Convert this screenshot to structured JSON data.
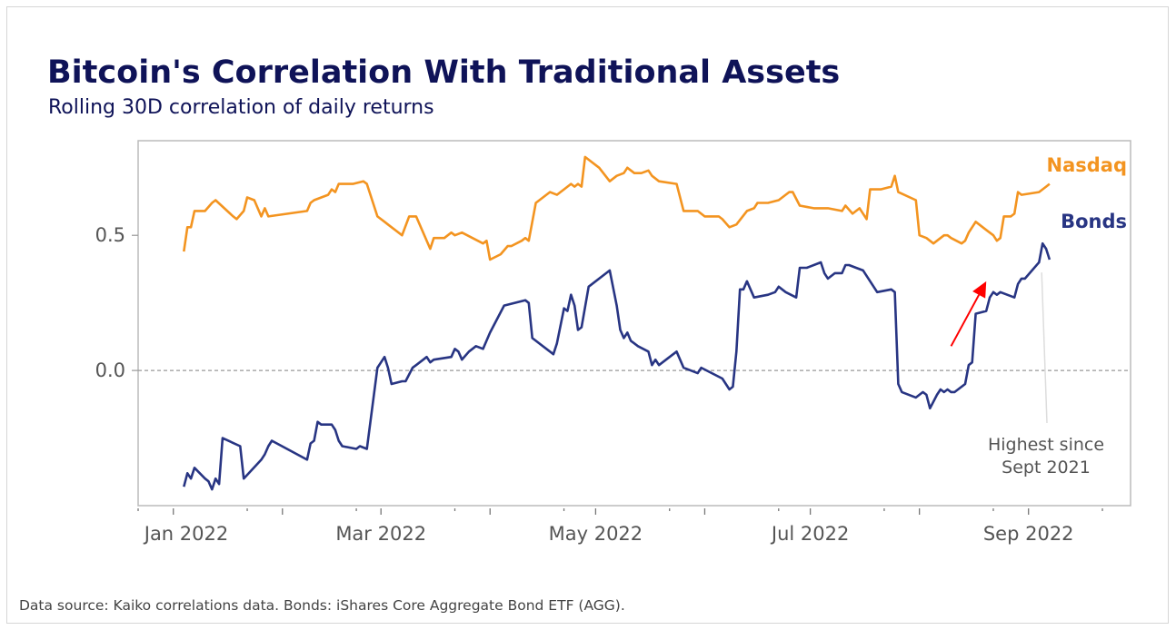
{
  "chart_data": {
    "type": "line",
    "title": "Bitcoin's Correlation With Traditional Assets",
    "subtitle": "Rolling 30D correlation of daily returns",
    "xlabel": "",
    "ylabel": "",
    "xlim": [
      "2021-12-22",
      "2022-09-30"
    ],
    "ylim": [
      -0.5,
      0.85
    ],
    "x_ticks": [
      {
        "date": "2022-01-01",
        "label": "Jan 2022"
      },
      {
        "date": "2022-03-01",
        "label": "Mar 2022"
      },
      {
        "date": "2022-05-01",
        "label": "May 2022"
      },
      {
        "date": "2022-07-01",
        "label": "Jul 2022"
      },
      {
        "date": "2022-09-01",
        "label": "Sep 2022"
      }
    ],
    "y_ticks": [
      {
        "value": 0.5,
        "label": "0.5"
      },
      {
        "value": 0.0,
        "label": "0.0"
      }
    ],
    "grid": false,
    "reference_line": {
      "value": 0.0,
      "style": "dashed"
    },
    "series": [
      {
        "name": "Nasdaq",
        "color": "#f39420",
        "points": [
          [
            "2022-01-04",
            0.44
          ],
          [
            "2022-01-05",
            0.53
          ],
          [
            "2022-01-06",
            0.53
          ],
          [
            "2022-01-07",
            0.59
          ],
          [
            "2022-01-10",
            0.59
          ],
          [
            "2022-01-12",
            0.62
          ],
          [
            "2022-01-13",
            0.63
          ],
          [
            "2022-01-18",
            0.57
          ],
          [
            "2022-01-19",
            0.56
          ],
          [
            "2022-01-21",
            0.59
          ],
          [
            "2022-01-22",
            0.64
          ],
          [
            "2022-01-24",
            0.63
          ],
          [
            "2022-01-26",
            0.57
          ],
          [
            "2022-01-27",
            0.6
          ],
          [
            "2022-01-28",
            0.57
          ],
          [
            "2022-02-08",
            0.59
          ],
          [
            "2022-02-09",
            0.62
          ],
          [
            "2022-02-10",
            0.63
          ],
          [
            "2022-02-14",
            0.65
          ],
          [
            "2022-02-15",
            0.67
          ],
          [
            "2022-02-16",
            0.66
          ],
          [
            "2022-02-17",
            0.69
          ],
          [
            "2022-02-21",
            0.69
          ],
          [
            "2022-02-24",
            0.7
          ],
          [
            "2022-02-25",
            0.69
          ],
          [
            "2022-02-28",
            0.57
          ],
          [
            "2022-03-02",
            0.55
          ],
          [
            "2022-03-03",
            0.54
          ],
          [
            "2022-03-07",
            0.5
          ],
          [
            "2022-03-09",
            0.57
          ],
          [
            "2022-03-11",
            0.57
          ],
          [
            "2022-03-15",
            0.45
          ],
          [
            "2022-03-16",
            0.49
          ],
          [
            "2022-03-19",
            0.49
          ],
          [
            "2022-03-21",
            0.51
          ],
          [
            "2022-03-22",
            0.5
          ],
          [
            "2022-03-24",
            0.51
          ],
          [
            "2022-03-30",
            0.47
          ],
          [
            "2022-03-31",
            0.48
          ],
          [
            "2022-04-01",
            0.41
          ],
          [
            "2022-04-04",
            0.43
          ],
          [
            "2022-04-06",
            0.46
          ],
          [
            "2022-04-07",
            0.46
          ],
          [
            "2022-04-10",
            0.48
          ],
          [
            "2022-04-11",
            0.49
          ],
          [
            "2022-04-12",
            0.48
          ],
          [
            "2022-04-14",
            0.62
          ],
          [
            "2022-04-18",
            0.66
          ],
          [
            "2022-04-20",
            0.65
          ],
          [
            "2022-04-22",
            0.67
          ],
          [
            "2022-04-24",
            0.69
          ],
          [
            "2022-04-25",
            0.68
          ],
          [
            "2022-04-26",
            0.69
          ],
          [
            "2022-04-27",
            0.68
          ],
          [
            "2022-04-28",
            0.79
          ],
          [
            "2022-05-02",
            0.75
          ],
          [
            "2022-05-05",
            0.7
          ],
          [
            "2022-05-07",
            0.72
          ],
          [
            "2022-05-09",
            0.73
          ],
          [
            "2022-05-10",
            0.75
          ],
          [
            "2022-05-12",
            0.73
          ],
          [
            "2022-05-14",
            0.73
          ],
          [
            "2022-05-16",
            0.74
          ],
          [
            "2022-05-17",
            0.72
          ],
          [
            "2022-05-19",
            0.7
          ],
          [
            "2022-05-24",
            0.69
          ],
          [
            "2022-05-26",
            0.59
          ],
          [
            "2022-05-30",
            0.59
          ],
          [
            "2022-06-01",
            0.57
          ],
          [
            "2022-06-05",
            0.57
          ],
          [
            "2022-06-06",
            0.56
          ],
          [
            "2022-06-08",
            0.53
          ],
          [
            "2022-06-10",
            0.54
          ],
          [
            "2022-06-13",
            0.59
          ],
          [
            "2022-06-15",
            0.6
          ],
          [
            "2022-06-16",
            0.62
          ],
          [
            "2022-06-19",
            0.62
          ],
          [
            "2022-06-22",
            0.63
          ],
          [
            "2022-06-25",
            0.66
          ],
          [
            "2022-06-26",
            0.66
          ],
          [
            "2022-06-28",
            0.61
          ],
          [
            "2022-07-02",
            0.6
          ],
          [
            "2022-07-06",
            0.6
          ],
          [
            "2022-07-10",
            0.59
          ],
          [
            "2022-07-11",
            0.61
          ],
          [
            "2022-07-13",
            0.58
          ],
          [
            "2022-07-15",
            0.6
          ],
          [
            "2022-07-17",
            0.56
          ],
          [
            "2022-07-18",
            0.67
          ],
          [
            "2022-07-21",
            0.67
          ],
          [
            "2022-07-24",
            0.68
          ],
          [
            "2022-07-25",
            0.72
          ],
          [
            "2022-07-26",
            0.66
          ],
          [
            "2022-07-31",
            0.63
          ],
          [
            "2022-08-01",
            0.5
          ],
          [
            "2022-08-03",
            0.49
          ],
          [
            "2022-08-05",
            0.47
          ],
          [
            "2022-08-06",
            0.48
          ],
          [
            "2022-08-08",
            0.5
          ],
          [
            "2022-08-09",
            0.5
          ],
          [
            "2022-08-10",
            0.49
          ],
          [
            "2022-08-13",
            0.47
          ],
          [
            "2022-08-14",
            0.48
          ],
          [
            "2022-08-15",
            0.51
          ],
          [
            "2022-08-17",
            0.55
          ],
          [
            "2022-08-20",
            0.52
          ],
          [
            "2022-08-22",
            0.5
          ],
          [
            "2022-08-23",
            0.48
          ],
          [
            "2022-08-24",
            0.49
          ],
          [
            "2022-08-25",
            0.57
          ],
          [
            "2022-08-27",
            0.57
          ],
          [
            "2022-08-28",
            0.58
          ],
          [
            "2022-08-29",
            0.66
          ],
          [
            "2022-08-30",
            0.65
          ],
          [
            "2022-09-04",
            0.66
          ],
          [
            "2022-09-06",
            0.68
          ],
          [
            "2022-09-07",
            0.69
          ]
        ]
      },
      {
        "name": "Bonds",
        "color": "#283583",
        "points": [
          [
            "2022-01-04",
            -0.43
          ],
          [
            "2022-01-05",
            -0.38
          ],
          [
            "2022-01-06",
            -0.4
          ],
          [
            "2022-01-07",
            -0.36
          ],
          [
            "2022-01-10",
            -0.4
          ],
          [
            "2022-01-11",
            -0.41
          ],
          [
            "2022-01-12",
            -0.44
          ],
          [
            "2022-01-13",
            -0.4
          ],
          [
            "2022-01-14",
            -0.42
          ],
          [
            "2022-01-15",
            -0.25
          ],
          [
            "2022-01-20",
            -0.28
          ],
          [
            "2022-01-21",
            -0.4
          ],
          [
            "2022-01-26",
            -0.33
          ],
          [
            "2022-01-27",
            -0.31
          ],
          [
            "2022-01-28",
            -0.28
          ],
          [
            "2022-01-29",
            -0.26
          ],
          [
            "2022-02-08",
            -0.33
          ],
          [
            "2022-02-09",
            -0.27
          ],
          [
            "2022-02-10",
            -0.26
          ],
          [
            "2022-02-11",
            -0.19
          ],
          [
            "2022-02-12",
            -0.2
          ],
          [
            "2022-02-15",
            -0.2
          ],
          [
            "2022-02-16",
            -0.22
          ],
          [
            "2022-02-17",
            -0.26
          ],
          [
            "2022-02-18",
            -0.28
          ],
          [
            "2022-02-22",
            -0.29
          ],
          [
            "2022-02-23",
            -0.28
          ],
          [
            "2022-02-25",
            -0.29
          ],
          [
            "2022-02-28",
            0.01
          ],
          [
            "2022-03-01",
            0.03
          ],
          [
            "2022-03-02",
            0.05
          ],
          [
            "2022-03-03",
            0.01
          ],
          [
            "2022-03-04",
            -0.05
          ],
          [
            "2022-03-07",
            -0.04
          ],
          [
            "2022-03-08",
            -0.04
          ],
          [
            "2022-03-10",
            0.01
          ],
          [
            "2022-03-11",
            0.02
          ],
          [
            "2022-03-13",
            0.04
          ],
          [
            "2022-03-14",
            0.05
          ],
          [
            "2022-03-15",
            0.03
          ],
          [
            "2022-03-16",
            0.04
          ],
          [
            "2022-03-21",
            0.05
          ],
          [
            "2022-03-22",
            0.08
          ],
          [
            "2022-03-23",
            0.07
          ],
          [
            "2022-03-24",
            0.04
          ],
          [
            "2022-03-26",
            0.07
          ],
          [
            "2022-03-28",
            0.09
          ],
          [
            "2022-03-30",
            0.08
          ],
          [
            "2022-04-01",
            0.14
          ],
          [
            "2022-04-05",
            0.24
          ],
          [
            "2022-04-11",
            0.26
          ],
          [
            "2022-04-12",
            0.25
          ],
          [
            "2022-04-13",
            0.12
          ],
          [
            "2022-04-19",
            0.06
          ],
          [
            "2022-04-20",
            0.1
          ],
          [
            "2022-04-22",
            0.23
          ],
          [
            "2022-04-23",
            0.22
          ],
          [
            "2022-04-24",
            0.28
          ],
          [
            "2022-04-25",
            0.24
          ],
          [
            "2022-04-26",
            0.15
          ],
          [
            "2022-04-27",
            0.16
          ],
          [
            "2022-04-29",
            0.31
          ],
          [
            "2022-05-05",
            0.37
          ],
          [
            "2022-05-07",
            0.24
          ],
          [
            "2022-05-08",
            0.15
          ],
          [
            "2022-05-09",
            0.12
          ],
          [
            "2022-05-10",
            0.14
          ],
          [
            "2022-05-11",
            0.11
          ],
          [
            "2022-05-12",
            0.1
          ],
          [
            "2022-05-13",
            0.09
          ],
          [
            "2022-05-16",
            0.07
          ],
          [
            "2022-05-17",
            0.02
          ],
          [
            "2022-05-18",
            0.04
          ],
          [
            "2022-05-19",
            0.02
          ],
          [
            "2022-05-21",
            0.04
          ],
          [
            "2022-05-24",
            0.07
          ],
          [
            "2022-05-26",
            0.01
          ],
          [
            "2022-05-30",
            -0.01
          ],
          [
            "2022-05-31",
            0.01
          ],
          [
            "2022-06-06",
            -0.03
          ],
          [
            "2022-06-08",
            -0.07
          ],
          [
            "2022-06-09",
            -0.06
          ],
          [
            "2022-06-10",
            0.07
          ],
          [
            "2022-06-11",
            0.3
          ],
          [
            "2022-06-12",
            0.3
          ],
          [
            "2022-06-13",
            0.33
          ],
          [
            "2022-06-15",
            0.27
          ],
          [
            "2022-06-19",
            0.28
          ],
          [
            "2022-06-21",
            0.29
          ],
          [
            "2022-06-22",
            0.31
          ],
          [
            "2022-06-24",
            0.29
          ],
          [
            "2022-06-27",
            0.27
          ],
          [
            "2022-06-28",
            0.38
          ],
          [
            "2022-06-30",
            0.38
          ],
          [
            "2022-07-04",
            0.4
          ],
          [
            "2022-07-05",
            0.36
          ],
          [
            "2022-07-06",
            0.34
          ],
          [
            "2022-07-08",
            0.36
          ],
          [
            "2022-07-10",
            0.36
          ],
          [
            "2022-07-11",
            0.39
          ],
          [
            "2022-07-12",
            0.39
          ],
          [
            "2022-07-14",
            0.38
          ],
          [
            "2022-07-16",
            0.37
          ],
          [
            "2022-07-20",
            0.29
          ],
          [
            "2022-07-24",
            0.3
          ],
          [
            "2022-07-25",
            0.29
          ],
          [
            "2022-07-26",
            -0.05
          ],
          [
            "2022-07-27",
            -0.08
          ],
          [
            "2022-07-31",
            -0.1
          ],
          [
            "2022-08-02",
            -0.08
          ],
          [
            "2022-08-03",
            -0.09
          ],
          [
            "2022-08-04",
            -0.14
          ],
          [
            "2022-08-06",
            -0.09
          ],
          [
            "2022-08-07",
            -0.07
          ],
          [
            "2022-08-08",
            -0.08
          ],
          [
            "2022-08-09",
            -0.07
          ],
          [
            "2022-08-10",
            -0.08
          ],
          [
            "2022-08-11",
            -0.08
          ],
          [
            "2022-08-14",
            -0.05
          ],
          [
            "2022-08-15",
            0.02
          ],
          [
            "2022-08-16",
            0.03
          ],
          [
            "2022-08-17",
            0.21
          ],
          [
            "2022-08-20",
            0.22
          ],
          [
            "2022-08-21",
            0.27
          ],
          [
            "2022-08-22",
            0.29
          ],
          [
            "2022-08-23",
            0.28
          ],
          [
            "2022-08-24",
            0.29
          ],
          [
            "2022-08-28",
            0.27
          ],
          [
            "2022-08-29",
            0.32
          ],
          [
            "2022-08-30",
            0.34
          ],
          [
            "2022-08-31",
            0.34
          ],
          [
            "2022-09-04",
            0.4
          ],
          [
            "2022-09-05",
            0.47
          ],
          [
            "2022-09-06",
            0.45
          ],
          [
            "2022-09-07",
            0.41
          ]
        ]
      }
    ],
    "annotations": [
      {
        "text_line1": "Highest since",
        "text_line2": "Sept 2021",
        "points_to": [
          "2022-09-05",
          0.47
        ]
      },
      {
        "type": "arrow",
        "color": "#ff0000",
        "from": [
          "2022-08-10",
          0.09
        ],
        "to": [
          "2022-08-20",
          0.33
        ]
      }
    ]
  },
  "footer": "Data source: Kaiko correlations data. Bonds: iShares Core Aggregate Bond ETF (AGG)."
}
